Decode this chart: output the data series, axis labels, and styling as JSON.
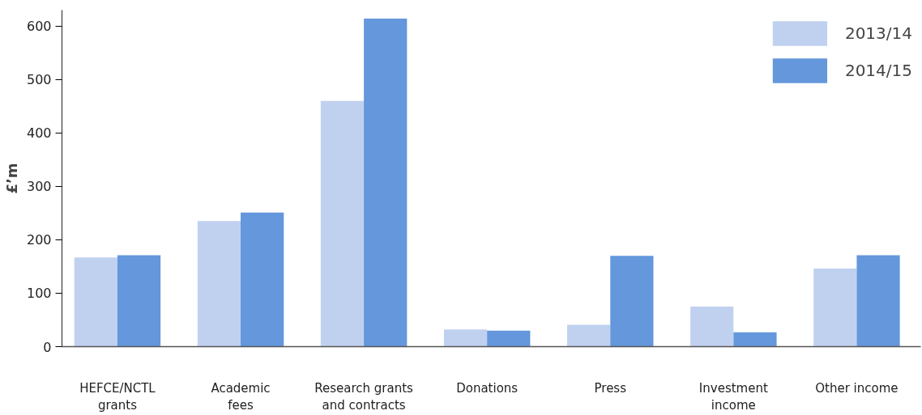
{
  "chart_data": {
    "type": "bar",
    "ylabel": "£’m",
    "categories": [
      "HEFCE/NCTL grants",
      "Academic fees",
      "Research grants and contracts",
      "Donations",
      "Press",
      "Investment income",
      "Other income"
    ],
    "series": [
      {
        "name": "2013/14",
        "color": "#c0d1f0",
        "values": [
          167,
          235,
          460,
          32,
          41,
          75,
          146
        ]
      },
      {
        "name": "2014/15",
        "color": "#6497db",
        "values": [
          171,
          251,
          614,
          30,
          170,
          27,
          171
        ]
      }
    ],
    "ylim": [
      0,
      630
    ],
    "yticks": [
      0,
      100,
      200,
      300,
      400,
      500,
      600
    ],
    "grid": false,
    "legend": "top right"
  }
}
